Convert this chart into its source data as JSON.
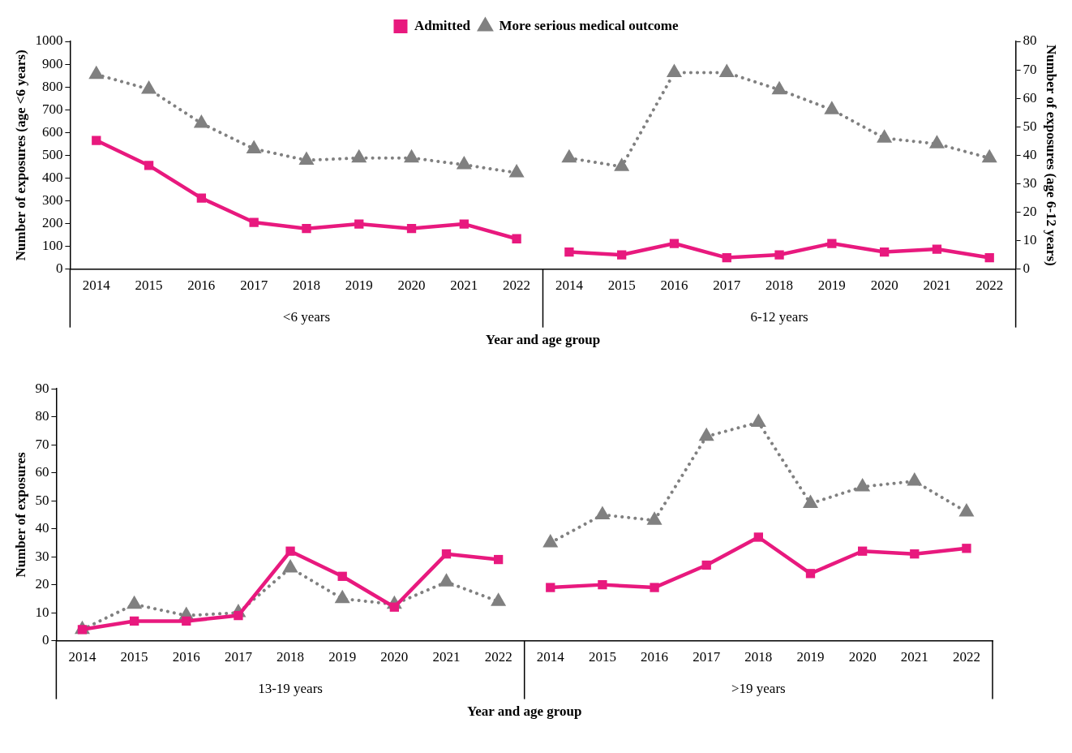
{
  "chart_data": [
    {
      "type": "line",
      "ylabel": "Number of exposures (age <6 years)",
      "y2label": "Number of exposures (age 6-12 years)",
      "xlabel": "Year and age group",
      "categories": [
        "2014",
        "2015",
        "2016",
        "2017",
        "2018",
        "2019",
        "2020",
        "2021",
        "2022",
        "2014",
        "2015",
        "2016",
        "2017",
        "2018",
        "2019",
        "2020",
        "2021",
        "2022"
      ],
      "annotations": [
        "<6 years",
        "6-12 years"
      ],
      "ylim": [
        0,
        1000
      ],
      "yticks": [
        0,
        100,
        200,
        300,
        400,
        500,
        600,
        700,
        800,
        900,
        1000
      ],
      "y2lim": [
        0,
        80
      ],
      "y2ticks": [
        0,
        10,
        20,
        30,
        40,
        50,
        60,
        70,
        80
      ],
      "grid": false,
      "legend": "top",
      "series": [
        {
          "name": "Admitted",
          "color": "#e8197e",
          "marker": "square",
          "line_style": "solid",
          "values": [
            565,
            455,
            312,
            205,
            178,
            198,
            178,
            198,
            133,
            null,
            null,
            null,
            null,
            null,
            null,
            null,
            null,
            null
          ]
        },
        {
          "name": "More serious medical outcome",
          "color": "#808080",
          "marker": "triangle",
          "line_style": "dotted",
          "values": [
            855,
            790,
            640,
            528,
            478,
            488,
            488,
            458,
            423,
            null,
            null,
            null,
            null,
            null,
            null,
            null,
            null,
            null
          ]
        },
        {
          "color": "#e8197e",
          "marker": "square",
          "line_style": "solid",
          "axis": "y2",
          "values": [
            null,
            null,
            null,
            null,
            null,
            null,
            null,
            null,
            null,
            6,
            5,
            9,
            4,
            5,
            9,
            6,
            7,
            4
          ]
        },
        {
          "color": "#808080",
          "marker": "triangle",
          "line_style": "dotted",
          "axis": "y2",
          "values": [
            null,
            null,
            null,
            null,
            null,
            null,
            null,
            null,
            null,
            39,
            36,
            69,
            69,
            63,
            56,
            46,
            44,
            39
          ]
        }
      ]
    },
    {
      "type": "line",
      "ylabel": "Number of exposures",
      "xlabel": "Year and age group",
      "categories": [
        "2014",
        "2015",
        "2016",
        "2017",
        "2018",
        "2019",
        "2020",
        "2021",
        "2022",
        "2014",
        "2015",
        "2016",
        "2017",
        "2018",
        "2019",
        "2020",
        "2021",
        "2022"
      ],
      "annotations": [
        "13-19 years",
        ">19 years"
      ],
      "ylim": [
        0,
        90
      ],
      "yticks": [
        0,
        10,
        20,
        30,
        40,
        50,
        60,
        70,
        80,
        90
      ],
      "grid": false,
      "series": [
        {
          "color": "#e8197e",
          "marker": "square",
          "line_style": "solid",
          "values": [
            4,
            7,
            7,
            9,
            32,
            23,
            12,
            31,
            29,
            null,
            null,
            null,
            null,
            null,
            null,
            null,
            null,
            null
          ]
        },
        {
          "color": "#808080",
          "marker": "triangle",
          "line_style": "dotted",
          "values": [
            4,
            13,
            9,
            10,
            26,
            15,
            13,
            21,
            14,
            null,
            null,
            null,
            null,
            null,
            null,
            null,
            null,
            null
          ]
        },
        {
          "color": "#808080",
          "marker": "triangle",
          "line_style": "dotted",
          "values": [
            null,
            null,
            null,
            null,
            null,
            null,
            null,
            null,
            null,
            35,
            45,
            43,
            73,
            78,
            49,
            55,
            57,
            46
          ]
        },
        {
          "color": "#e8197e",
          "marker": "square",
          "line_style": "solid",
          "values": [
            null,
            null,
            null,
            null,
            null,
            null,
            null,
            null,
            null,
            19,
            20,
            19,
            27,
            37,
            24,
            32,
            31,
            33
          ]
        }
      ]
    }
  ]
}
